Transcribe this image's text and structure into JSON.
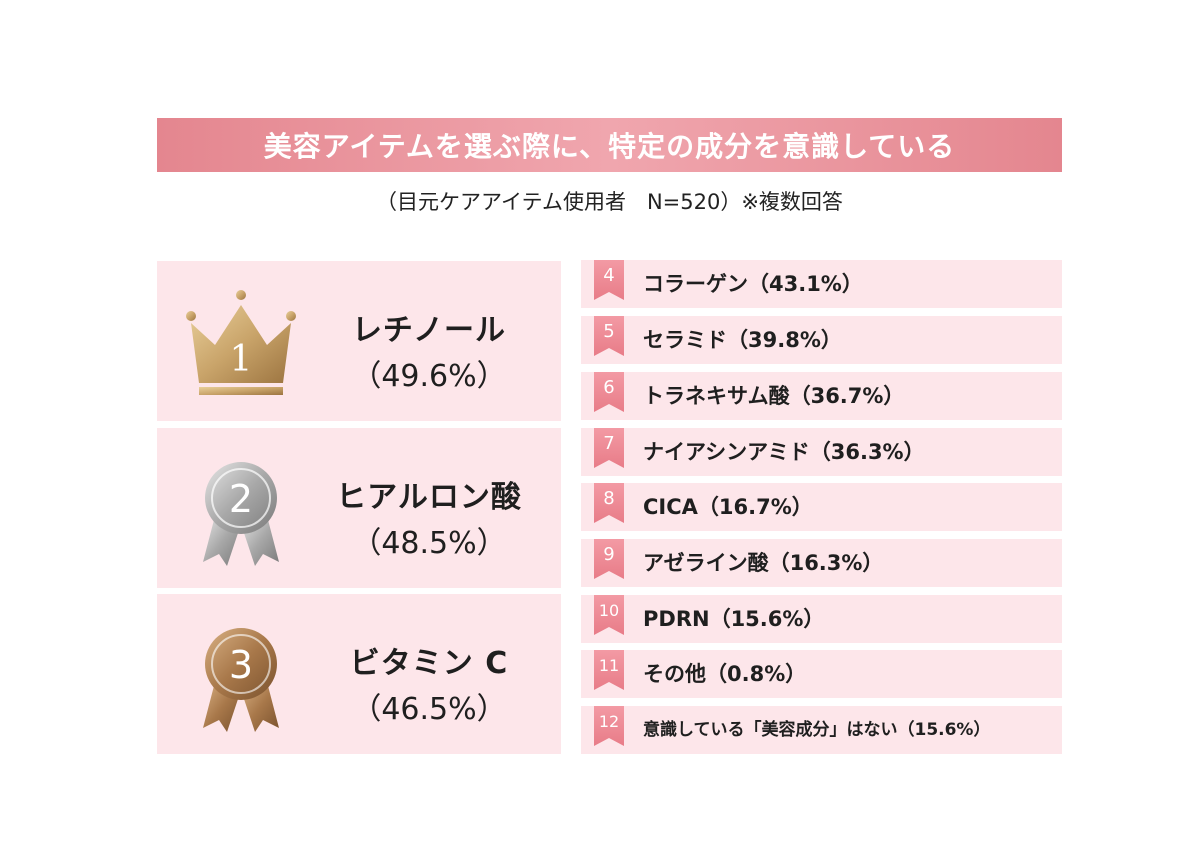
{
  "title": "美容アイテムを選ぶ際に、特定の成分を意識している",
  "subtitle": "（目元ケアアイテム使用者　N=520）※複数回答",
  "colors": {
    "title_bar": "#e98e97",
    "card_bg": "#fde6ea",
    "gold": "#c9a46a",
    "silver": "#a8a8a8",
    "bronze": "#a8784a",
    "rank_badge": "#ec8591"
  },
  "top3": [
    {
      "rank": "1",
      "icon": "crown-icon",
      "name": "レチノール",
      "pct_label": "（49.6%）"
    },
    {
      "rank": "2",
      "icon": "silver-medal-icon",
      "name": "ヒアルロン酸",
      "pct_label": "（48.5%）"
    },
    {
      "rank": "3",
      "icon": "bronze-medal-icon",
      "name": "ビタミン C",
      "pct_label": "（46.5%）"
    }
  ],
  "others": [
    {
      "rank": "4",
      "label": "コラーゲン（43.1%）"
    },
    {
      "rank": "5",
      "label": "セラミド（39.8%）"
    },
    {
      "rank": "6",
      "label": "トラネキサム酸（36.7%）"
    },
    {
      "rank": "7",
      "label": "ナイアシンアミド（36.3%）"
    },
    {
      "rank": "8",
      "label": "CICA（16.7%）"
    },
    {
      "rank": "9",
      "label": "アゼライン酸（16.3%）"
    },
    {
      "rank": "10",
      "label": "PDRN（15.6%）"
    },
    {
      "rank": "11",
      "label": "その他（0.8%）"
    },
    {
      "rank": "12",
      "label": "意識している「美容成分」はない（15.6%）"
    }
  ],
  "chart_data": {
    "type": "table",
    "title": "美容アイテムを選ぶ際に、特定の成分を意識している",
    "subtitle": "（目元ケアアイテム使用者　N=520）※複数回答",
    "categories": [
      "レチノール",
      "ヒアルロン酸",
      "ビタミン C",
      "コラーゲン",
      "セラミド",
      "トラネキサム酸",
      "ナイアシンアミド",
      "CICA",
      "アゼライン酸",
      "PDRN",
      "その他",
      "意識している「美容成分」はない"
    ],
    "values": [
      49.6,
      48.5,
      46.5,
      43.1,
      39.8,
      36.7,
      36.3,
      16.7,
      16.3,
      15.6,
      0.8,
      15.6
    ]
  }
}
